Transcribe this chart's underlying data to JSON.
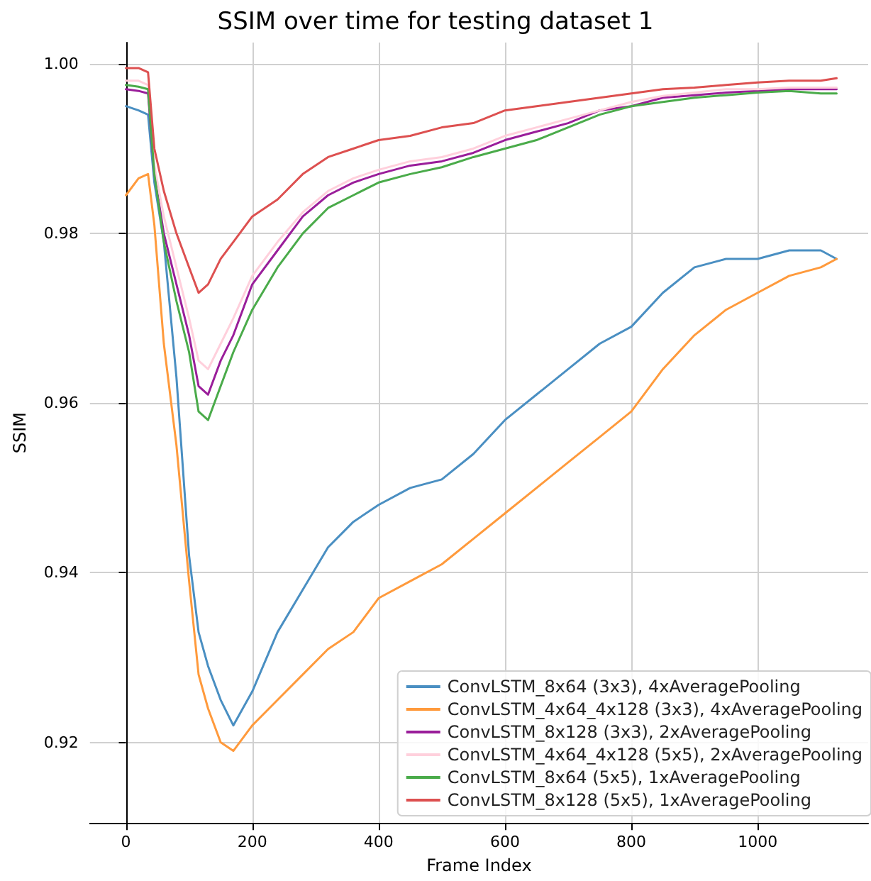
{
  "chart_data": {
    "type": "line",
    "title": "SSIM over time for testing dataset 1",
    "xlabel": "Frame Index",
    "ylabel": "SSIM",
    "x": [
      0,
      20,
      35,
      45,
      60,
      80,
      100,
      115,
      130,
      150,
      170,
      200,
      240,
      280,
      320,
      360,
      400,
      450,
      500,
      550,
      600,
      650,
      700,
      750,
      800,
      850,
      900,
      950,
      1000,
      1050,
      1100,
      1125
    ],
    "series": [
      {
        "name": "ConvLSTM_8x64 (3x3), 4xAveragePooling",
        "color": "#4a8fc2",
        "values": [
          0.995,
          0.9945,
          0.994,
          0.986,
          0.979,
          0.963,
          0.942,
          0.933,
          0.929,
          0.925,
          0.922,
          0.926,
          0.933,
          0.938,
          0.943,
          0.946,
          0.948,
          0.95,
          0.951,
          0.954,
          0.958,
          0.961,
          0.964,
          0.967,
          0.969,
          0.973,
          0.976,
          0.977,
          0.977,
          0.978,
          0.978,
          0.977
        ]
      },
      {
        "name": "ConvLSTM_4x64_4x128 (3x3), 4xAveragePooling",
        "color": "#ff9a3c",
        "values": [
          0.9845,
          0.9865,
          0.987,
          0.981,
          0.967,
          0.955,
          0.939,
          0.928,
          0.924,
          0.92,
          0.919,
          0.922,
          0.925,
          0.928,
          0.931,
          0.933,
          0.937,
          0.939,
          0.941,
          0.944,
          0.947,
          0.95,
          0.953,
          0.956,
          0.959,
          0.964,
          0.968,
          0.971,
          0.973,
          0.975,
          0.976,
          0.977
        ]
      },
      {
        "name": "ConvLSTM_8x128 (3x3), 2xAveragePooling",
        "color": "#9a1e9a",
        "values": [
          0.997,
          0.9968,
          0.9965,
          0.987,
          0.98,
          0.974,
          0.968,
          0.962,
          0.961,
          0.965,
          0.968,
          0.974,
          0.978,
          0.982,
          0.9845,
          0.986,
          0.987,
          0.988,
          0.9885,
          0.9895,
          0.991,
          0.992,
          0.993,
          0.9945,
          0.995,
          0.996,
          0.9963,
          0.9966,
          0.9968,
          0.997,
          0.997,
          0.997
        ]
      },
      {
        "name": "ConvLSTM_4x64_4x128 (5x5), 2xAveragePooling",
        "color": "#ffd0dc",
        "values": [
          0.998,
          0.998,
          0.9975,
          0.988,
          0.982,
          0.976,
          0.97,
          0.965,
          0.964,
          0.967,
          0.97,
          0.975,
          0.979,
          0.9825,
          0.985,
          0.9865,
          0.9875,
          0.9885,
          0.989,
          0.99,
          0.9915,
          0.9925,
          0.9935,
          0.9945,
          0.9955,
          0.9962,
          0.9966,
          0.997,
          0.997,
          0.9972,
          0.9972,
          0.9972
        ]
      },
      {
        "name": "ConvLSTM_8x64 (5x5), 1xAveragePooling",
        "color": "#4aab4a",
        "values": [
          0.9975,
          0.9973,
          0.997,
          0.987,
          0.979,
          0.972,
          0.966,
          0.959,
          0.958,
          0.962,
          0.966,
          0.971,
          0.976,
          0.98,
          0.983,
          0.9845,
          0.986,
          0.987,
          0.9878,
          0.989,
          0.99,
          0.991,
          0.9925,
          0.994,
          0.995,
          0.9955,
          0.996,
          0.9963,
          0.9966,
          0.9968,
          0.9965,
          0.9965
        ]
      },
      {
        "name": "ConvLSTM_8x128 (5x5), 1xAveragePooling",
        "color": "#dd5050",
        "values": [
          0.9995,
          0.9995,
          0.999,
          0.99,
          0.985,
          0.98,
          0.976,
          0.973,
          0.974,
          0.977,
          0.979,
          0.982,
          0.984,
          0.987,
          0.989,
          0.99,
          0.991,
          0.9915,
          0.9925,
          0.993,
          0.9945,
          0.995,
          0.9955,
          0.996,
          0.9965,
          0.997,
          0.9972,
          0.9975,
          0.9978,
          0.998,
          0.998,
          0.9983
        ]
      }
    ],
    "xlim": [
      -57,
      1175
    ],
    "xticks": [
      0,
      200,
      400,
      600,
      800,
      1000
    ],
    "ylim": [
      0.9105,
      1.0025
    ],
    "yticks": [
      0.92,
      0.94,
      0.96,
      0.98,
      {
        "value": 1,
        "label": "1.00"
      }
    ],
    "grid": true,
    "legend": "bottom right",
    "marker": "none",
    "line_style": "solid"
  }
}
